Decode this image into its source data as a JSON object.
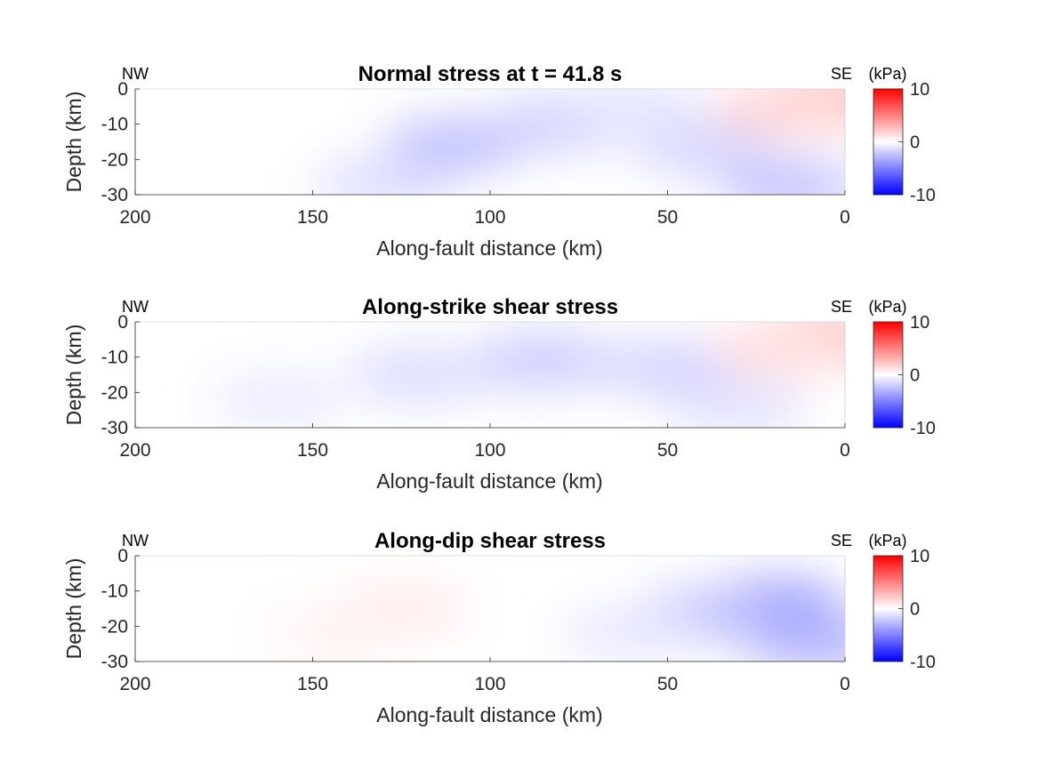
{
  "chart_data": [
    {
      "type": "heatmap",
      "title": "Normal stress at t = 41.8 s",
      "corner_left": "NW",
      "corner_right": "SE",
      "xlabel": "Along-fault distance (km)",
      "ylabel": "Depth (km)",
      "xlim": [
        200,
        0
      ],
      "ylim": [
        -30,
        0
      ],
      "xticks": [
        200,
        150,
        100,
        50,
        0
      ],
      "yticks": [
        0,
        -10,
        -20,
        -30
      ],
      "colorbar": {
        "unit": "(kPa)",
        "ticks": [
          10,
          0,
          -10
        ],
        "clim": [
          -10,
          10
        ],
        "colormap": "blue-white-red"
      },
      "field": [
        {
          "x": 110,
          "y": -16,
          "value": -1.6
        },
        {
          "x": 80,
          "y": -10,
          "value": -1.2
        },
        {
          "x": 130,
          "y": -27,
          "value": -0.8
        },
        {
          "x": 40,
          "y": -17,
          "value": -1.0
        },
        {
          "x": 15,
          "y": -28,
          "value": -1.5
        },
        {
          "x": 60,
          "y": -4,
          "value": -0.6
        },
        {
          "x": 5,
          "y": -3,
          "value": 1.8
        },
        {
          "x": 18,
          "y": -6,
          "value": 1.0
        }
      ]
    },
    {
      "type": "heatmap",
      "title": "Along-strike shear stress",
      "corner_left": "NW",
      "corner_right": "SE",
      "xlabel": "Along-fault distance (km)",
      "ylabel": "Depth (km)",
      "xlim": [
        200,
        0
      ],
      "ylim": [
        -30,
        0
      ],
      "xticks": [
        200,
        150,
        100,
        50,
        0
      ],
      "yticks": [
        0,
        -10,
        -20,
        -30
      ],
      "colorbar": {
        "unit": "(kPa)",
        "ticks": [
          10,
          0,
          -10
        ],
        "clim": [
          -10,
          10
        ],
        "colormap": "blue-white-red"
      },
      "field": [
        {
          "x": 120,
          "y": -15,
          "value": -0.9
        },
        {
          "x": 85,
          "y": -11,
          "value": -1.3
        },
        {
          "x": 50,
          "y": -13,
          "value": -1.1
        },
        {
          "x": 160,
          "y": -22,
          "value": -0.5
        },
        {
          "x": 30,
          "y": -24,
          "value": -0.7
        },
        {
          "x": 5,
          "y": -4,
          "value": 1.6
        },
        {
          "x": 18,
          "y": -8,
          "value": 0.8
        }
      ]
    },
    {
      "type": "heatmap",
      "title": "Along-dip shear stress",
      "corner_left": "NW",
      "corner_right": "SE",
      "xlabel": "Along-fault distance (km)",
      "ylabel": "Depth (km)",
      "xlim": [
        200,
        0
      ],
      "ylim": [
        -30,
        0
      ],
      "xticks": [
        200,
        150,
        100,
        50,
        0
      ],
      "yticks": [
        0,
        -10,
        -20,
        -30
      ],
      "colorbar": {
        "unit": "(kPa)",
        "ticks": [
          10,
          0,
          -10
        ],
        "clim": [
          -10,
          10
        ],
        "colormap": "blue-white-red"
      },
      "field": [
        {
          "x": 125,
          "y": -15,
          "value": 0.5
        },
        {
          "x": 145,
          "y": -22,
          "value": 0.3
        },
        {
          "x": 20,
          "y": -14,
          "value": -2.4
        },
        {
          "x": 40,
          "y": -17,
          "value": -1.6
        },
        {
          "x": 8,
          "y": -25,
          "value": -1.8
        },
        {
          "x": 60,
          "y": -22,
          "value": -0.6
        }
      ]
    }
  ]
}
